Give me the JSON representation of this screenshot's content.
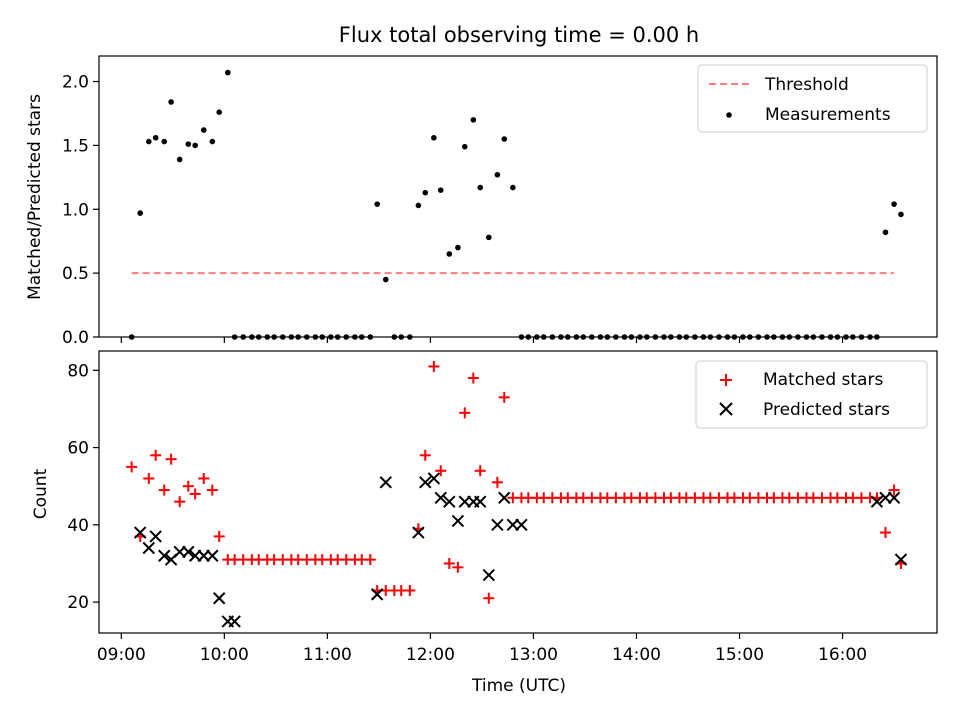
{
  "chart_data": [
    {
      "type": "scatter",
      "title": "Flux total observing time = 0.00 h",
      "xlabel": "",
      "ylabel": "Matched/Predicted stars",
      "xlim": [
        "08:47",
        "16:55"
      ],
      "ylim": [
        0,
        2.2
      ],
      "y_ticks": [
        "0.0",
        "0.5",
        "1.0",
        "1.5",
        "2.0"
      ],
      "legend_position": "top-right",
      "grid": false,
      "series": [
        {
          "name": "Threshold",
          "style": "dashed-line",
          "color": "#ff7f7f",
          "x": [
            "09:06",
            "16:30"
          ],
          "y": [
            0.5,
            0.5
          ]
        },
        {
          "name": "Measurements",
          "style": "dot",
          "color": "#000000",
          "x": [
            "09:06",
            "09:11",
            "09:16",
            "09:20",
            "09:25",
            "09:29",
            "09:34",
            "09:39",
            "09:43",
            "09:48",
            "09:53",
            "09:57",
            "10:02",
            "10:06",
            "10:11",
            "10:16",
            "10:20",
            "10:25",
            "10:29",
            "10:34",
            "10:39",
            "10:43",
            "10:48",
            "10:53",
            "10:57",
            "11:02",
            "11:06",
            "11:11",
            "11:16",
            "11:20",
            "11:25",
            "11:29",
            "11:34",
            "11:39",
            "11:43",
            "11:48",
            "11:53",
            "11:57",
            "12:02",
            "12:06",
            "12:11",
            "12:16",
            "12:20",
            "12:25",
            "12:29",
            "12:34",
            "12:39",
            "12:43",
            "12:48",
            "12:53",
            "12:57",
            "13:02",
            "13:06",
            "13:11",
            "13:16",
            "13:20",
            "13:25",
            "13:29",
            "13:34",
            "13:39",
            "13:43",
            "13:48",
            "13:53",
            "13:57",
            "14:02",
            "14:06",
            "14:11",
            "14:16",
            "14:20",
            "14:25",
            "14:29",
            "14:34",
            "14:39",
            "14:43",
            "14:48",
            "14:53",
            "14:57",
            "15:02",
            "15:06",
            "15:11",
            "15:16",
            "15:20",
            "15:25",
            "15:29",
            "15:34",
            "15:39",
            "15:43",
            "15:48",
            "15:53",
            "15:57",
            "16:02",
            "16:06",
            "16:11",
            "16:16",
            "16:20",
            "16:25",
            "16:30",
            "16:34"
          ],
          "y": [
            0.0,
            0.97,
            1.53,
            1.56,
            1.53,
            1.84,
            1.39,
            1.51,
            1.5,
            1.62,
            1.53,
            1.76,
            2.07,
            0.0,
            0.0,
            0.0,
            0.0,
            0.0,
            0.0,
            0.0,
            0.0,
            0.0,
            0.0,
            0.0,
            0.0,
            0.0,
            0.0,
            0.0,
            0.0,
            0.0,
            0.0,
            1.04,
            0.45,
            0.0,
            0.0,
            0.0,
            1.03,
            1.13,
            1.56,
            1.15,
            0.65,
            0.7,
            1.49,
            1.7,
            1.17,
            0.78,
            1.27,
            1.55,
            1.17,
            0.0,
            0.0,
            0.0,
            0.0,
            0.0,
            0.0,
            0.0,
            0.0,
            0.0,
            0.0,
            0.0,
            0.0,
            0.0,
            0.0,
            0.0,
            0.0,
            0.0,
            0.0,
            0.0,
            0.0,
            0.0,
            0.0,
            0.0,
            0.0,
            0.0,
            0.0,
            0.0,
            0.0,
            0.0,
            0.0,
            0.0,
            0.0,
            0.0,
            0.0,
            0.0,
            0.0,
            0.0,
            0.0,
            0.0,
            0.0,
            0.0,
            0.0,
            0.0,
            0.0,
            0.0,
            0.0,
            0.82,
            1.04,
            0.96
          ]
        }
      ]
    },
    {
      "type": "scatter",
      "title": "",
      "xlabel": "Time (UTC)",
      "ylabel": "Count",
      "xlim": [
        "08:47",
        "16:55"
      ],
      "ylim": [
        12,
        85
      ],
      "y_ticks": [
        "20",
        "40",
        "60",
        "80"
      ],
      "x_ticks": [
        "09:00",
        "10:00",
        "11:00",
        "12:00",
        "13:00",
        "14:00",
        "15:00",
        "16:00"
      ],
      "legend_position": "top-right",
      "grid": false,
      "series": [
        {
          "name": "Matched stars",
          "marker": "+",
          "color": "#ff0000",
          "x": [
            "09:06",
            "09:11",
            "09:16",
            "09:20",
            "09:25",
            "09:29",
            "09:34",
            "09:39",
            "09:43",
            "09:48",
            "09:53",
            "09:57",
            "10:02",
            "10:06",
            "10:11",
            "10:16",
            "10:20",
            "10:25",
            "10:29",
            "10:34",
            "10:39",
            "10:43",
            "10:48",
            "10:53",
            "10:57",
            "11:02",
            "11:06",
            "11:11",
            "11:16",
            "11:20",
            "11:25",
            "11:29",
            "11:34",
            "11:39",
            "11:43",
            "11:48",
            "11:53",
            "11:57",
            "12:02",
            "12:06",
            "12:11",
            "12:16",
            "12:20",
            "12:25",
            "12:29",
            "12:34",
            "12:39",
            "12:43",
            "12:48",
            "12:53",
            "12:57",
            "13:02",
            "13:06",
            "13:11",
            "13:16",
            "13:20",
            "13:25",
            "13:29",
            "13:34",
            "13:39",
            "13:43",
            "13:48",
            "13:53",
            "13:57",
            "14:02",
            "14:06",
            "14:11",
            "14:16",
            "14:20",
            "14:25",
            "14:29",
            "14:34",
            "14:39",
            "14:43",
            "14:48",
            "14:53",
            "14:57",
            "15:02",
            "15:06",
            "15:11",
            "15:16",
            "15:20",
            "15:25",
            "15:29",
            "15:34",
            "15:39",
            "15:43",
            "15:48",
            "15:53",
            "15:57",
            "16:02",
            "16:06",
            "16:11",
            "16:16",
            "16:20",
            "16:25",
            "16:30",
            "16:34"
          ],
          "y": [
            55,
            37,
            52,
            58,
            49,
            57,
            46,
            50,
            48,
            52,
            49,
            37,
            31,
            31,
            31,
            31,
            31,
            31,
            31,
            31,
            31,
            31,
            31,
            31,
            31,
            31,
            31,
            31,
            31,
            31,
            31,
            23,
            23,
            23,
            23,
            23,
            39,
            58,
            81,
            54,
            30,
            29,
            69,
            78,
            54,
            21,
            51,
            73,
            47,
            47,
            47,
            47,
            47,
            47,
            47,
            47,
            47,
            47,
            47,
            47,
            47,
            47,
            47,
            47,
            47,
            47,
            47,
            47,
            47,
            47,
            47,
            47,
            47,
            47,
            47,
            47,
            47,
            47,
            47,
            47,
            47,
            47,
            47,
            47,
            47,
            47,
            47,
            47,
            47,
            47,
            47,
            47,
            47,
            47,
            47,
            38,
            49,
            30
          ]
        },
        {
          "name": "Predicted stars",
          "marker": "x",
          "color": "#000000",
          "x": [
            "09:11",
            "09:16",
            "09:20",
            "09:25",
            "09:29",
            "09:34",
            "09:39",
            "09:43",
            "09:48",
            "09:53",
            "09:57",
            "10:02",
            "10:06",
            "11:29",
            "11:34",
            "11:53",
            "11:57",
            "12:02",
            "12:06",
            "12:11",
            "12:16",
            "12:20",
            "12:25",
            "12:29",
            "12:34",
            "12:39",
            "12:43",
            "12:48",
            "12:53",
            "16:20",
            "16:25",
            "16:30",
            "16:34"
          ],
          "y": [
            38,
            34,
            37,
            32,
            31,
            33,
            33,
            32,
            32,
            32,
            21,
            15,
            15,
            22,
            51,
            38,
            51,
            52,
            47,
            46,
            41,
            46,
            46,
            46,
            27,
            40,
            47,
            40,
            40,
            46,
            47,
            47,
            31
          ]
        }
      ]
    }
  ]
}
